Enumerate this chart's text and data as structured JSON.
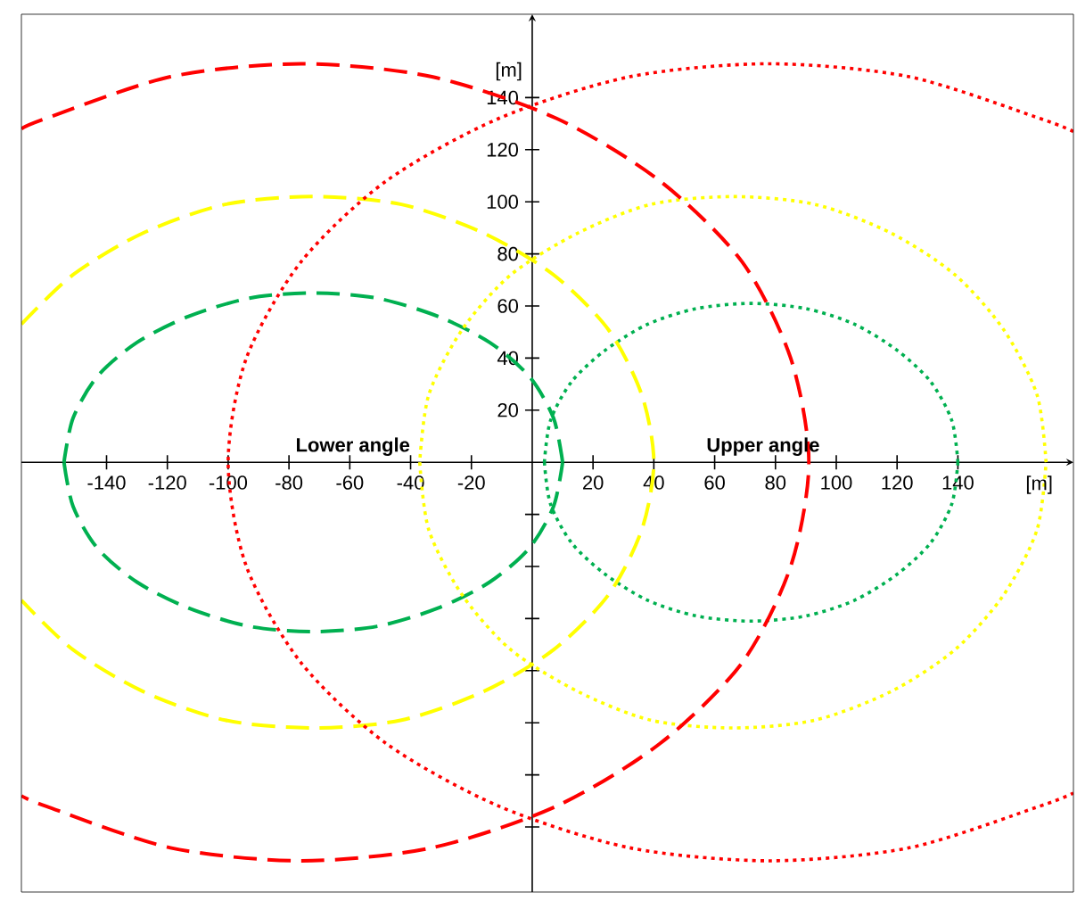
{
  "chart_data": {
    "type": "line",
    "xlabel": "[m]",
    "ylabel": "[m]",
    "xlim": [
      -168,
      178
    ],
    "ylim": [
      -165,
      172
    ],
    "xticks": [
      -140,
      -120,
      -100,
      -80,
      -60,
      -40,
      -20,
      20,
      40,
      60,
      80,
      100,
      120,
      140
    ],
    "yticks": [
      {
        "value": -140,
        "label": null
      },
      {
        "value": -120,
        "label": null
      },
      {
        "value": -100,
        "label": null
      },
      {
        "value": -80,
        "label": null
      },
      {
        "value": -60,
        "label": null
      },
      {
        "value": -40,
        "label": null
      },
      {
        "value": -20,
        "label": null
      },
      20,
      40,
      60,
      80,
      100,
      120,
      140
    ],
    "grid": false,
    "marker": "none",
    "annotations": [
      "Lower angle",
      "Upper angle"
    ],
    "series": [
      {
        "color": "#00b050",
        "line_style": "dashed",
        "x": [
          10,
          7,
          -1,
          -14,
          -31,
          -51,
          -72,
          -93,
          -113,
          -130,
          -143,
          -151,
          -154,
          -151,
          -143,
          -130,
          -113,
          -93,
          -72,
          -51,
          -31,
          -14,
          -1,
          7,
          10
        ],
        "values": [
          0,
          17,
          33,
          46,
          56,
          63,
          65,
          63,
          56,
          46,
          33,
          17,
          0,
          -17,
          -33,
          -46,
          -56,
          -63,
          -65,
          -63,
          -56,
          -46,
          -33,
          -17,
          0
        ]
      },
      {
        "color": "#00b050",
        "line_style": "dotted",
        "x": [
          140,
          138,
          131,
          120,
          106,
          90,
          72,
          54,
          38,
          24,
          13,
          6,
          4,
          6,
          13,
          24,
          38,
          54,
          72,
          90,
          106,
          120,
          131,
          138,
          140
        ],
        "values": [
          0,
          16,
          31,
          43,
          53,
          59,
          61,
          59,
          53,
          43,
          31,
          16,
          0,
          -16,
          -31,
          -43,
          -53,
          -59,
          -61,
          -59,
          -53,
          -43,
          -31,
          -16,
          0
        ]
      },
      {
        "color": "#ffff00",
        "line_style": "dashed",
        "x": [
          -168,
          -151,
          -128,
          -101,
          -72,
          -43,
          -16,
          7,
          25,
          36,
          40,
          36,
          25,
          7,
          -16,
          -43,
          -72,
          -101,
          -128,
          -151,
          -168
        ],
        "values": [
          53,
          72,
          88,
          99,
          102,
          99,
          88,
          72,
          51,
          26,
          0,
          -26,
          -51,
          -72,
          -88,
          -99,
          -102,
          -99,
          -88,
          -72,
          -53
        ]
      },
      {
        "color": "#ffff00",
        "line_style": "dotted",
        "x": [
          169,
          166,
          155,
          139,
          118,
          93,
          66,
          39,
          15,
          -7,
          -23,
          -34,
          -37,
          -34,
          -23,
          -7,
          15,
          39,
          66,
          93,
          118,
          139,
          155,
          166,
          169
        ],
        "values": [
          0,
          26,
          51,
          72,
          88,
          99,
          102,
          99,
          88,
          72,
          51,
          26,
          0,
          -26,
          -51,
          -72,
          -88,
          -99,
          -102,
          -99,
          -88,
          -72,
          -51,
          -26,
          0
        ]
      },
      {
        "color": "#ff0000",
        "line_style": "dashed",
        "x": [
          -168,
          -160,
          -119,
          -76,
          -33,
          8,
          42,
          69,
          85,
          91,
          85,
          69,
          42,
          8,
          -33,
          -76,
          -119,
          -160,
          -168
        ],
        "values": [
          128,
          132,
          148,
          153,
          148,
          132,
          108,
          77,
          40,
          0,
          -40,
          -77,
          -108,
          -132,
          -148,
          -153,
          -148,
          -132,
          -128
        ]
      },
      {
        "color": "#ff0000",
        "line_style": "dotted",
        "x": [
          178,
          167,
          124,
          78,
          32,
          -11,
          -48,
          -76,
          -94,
          -100,
          -94,
          -76,
          -48,
          -11,
          32,
          78,
          124,
          167,
          178
        ],
        "values": [
          127,
          132,
          148,
          153,
          148,
          132,
          108,
          77,
          40,
          0,
          -40,
          -77,
          -108,
          -132,
          -148,
          -153,
          -148,
          -132,
          -127
        ]
      }
    ]
  }
}
